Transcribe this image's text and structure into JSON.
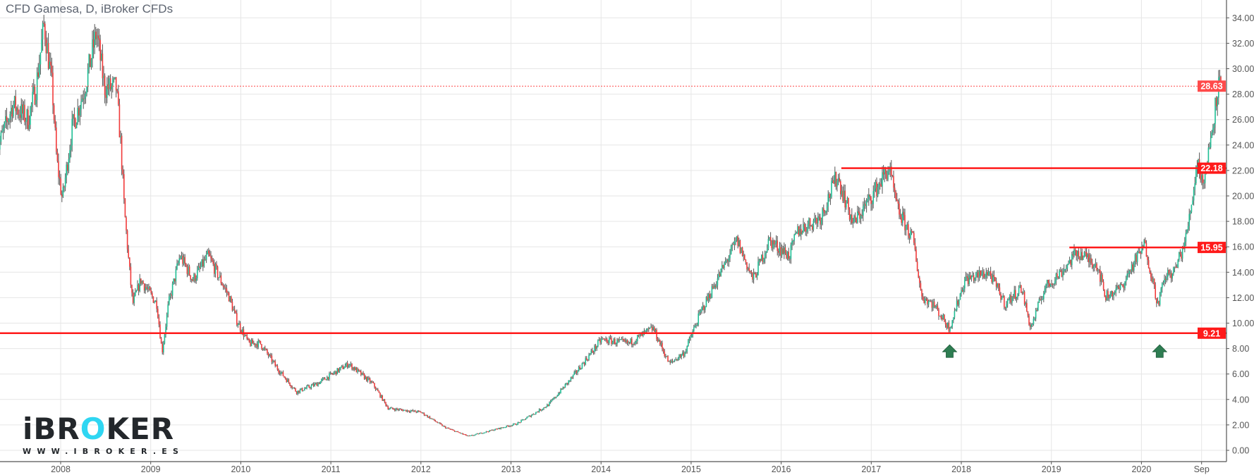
{
  "header": {
    "title": "CFD Gamesa, D, iBroker CFDs"
  },
  "logo": {
    "brand": "iBROKER",
    "url": "WWW.IBROKER.ES",
    "accent_color": "#2fd6f2"
  },
  "colors": {
    "up": "#1fbf95",
    "down": "#f23b3b",
    "wick": "#555555",
    "level_line": "#ff1a1a",
    "last_price": "#ff4a4a",
    "arrow": "#2e7d52",
    "grid": "#e6e6e6"
  },
  "chart_data": {
    "type": "candlestick",
    "title": "CFD Gamesa, D, iBroker CFDs",
    "interval": "D",
    "ylim": [
      -1,
      35
    ],
    "y_ticks": [
      "0.00",
      "2.00",
      "4.00",
      "6.00",
      "8.00",
      "10.00",
      "12.00",
      "14.00",
      "16.00",
      "18.00",
      "20.00",
      "22.00",
      "24.00",
      "26.00",
      "28.00",
      "30.00",
      "32.00",
      "34.00"
    ],
    "x_ticks": [
      {
        "label": "2008",
        "date": "2008-01-01"
      },
      {
        "label": "2009",
        "date": "2009-01-01"
      },
      {
        "label": "2010",
        "date": "2010-01-01"
      },
      {
        "label": "2011",
        "date": "2011-01-01"
      },
      {
        "label": "2012",
        "date": "2012-01-01"
      },
      {
        "label": "2013",
        "date": "2013-01-01"
      },
      {
        "label": "2014",
        "date": "2014-01-01"
      },
      {
        "label": "2015",
        "date": "2015-01-01"
      },
      {
        "label": "2016",
        "date": "2016-01-01"
      },
      {
        "label": "2017",
        "date": "2017-01-01"
      },
      {
        "label": "2018",
        "date": "2018-01-01"
      },
      {
        "label": "2019",
        "date": "2019-01-01"
      },
      {
        "label": "2020",
        "date": "2020-01-01"
      },
      {
        "label": "Sep",
        "date": "2020-09-01"
      }
    ],
    "grid": true,
    "approx_close": [
      [
        "2007-04-16",
        23.4
      ],
      [
        "2007-06-21",
        27.2
      ],
      [
        "2007-08-22",
        26.0
      ],
      [
        "2007-09-23",
        28.5
      ],
      [
        "2007-10-26",
        33.5
      ],
      [
        "2007-11-28",
        28.5
      ],
      [
        "2007-12-16",
        22.8
      ],
      [
        "2008-01-08",
        19.7
      ],
      [
        "2008-02-16",
        25.3
      ],
      [
        "2008-04-08",
        28.5
      ],
      [
        "2008-05-25",
        32.9
      ],
      [
        "2008-06-27",
        28.5
      ],
      [
        "2008-08-13",
        28.5
      ],
      [
        "2008-09-01",
        24.0
      ],
      [
        "2008-09-15",
        19.0
      ],
      [
        "2008-10-04",
        14.6
      ],
      [
        "2008-10-19",
        11.5
      ],
      [
        "2008-11-21",
        13.4
      ],
      [
        "2009-01-26",
        11.5
      ],
      [
        "2009-02-16",
        7.7
      ],
      [
        "2009-03-14",
        11.5
      ],
      [
        "2009-04-30",
        15.3
      ],
      [
        "2009-06-21",
        13.4
      ],
      [
        "2009-08-22",
        15.3
      ],
      [
        "2009-11-14",
        12.1
      ],
      [
        "2009-12-16",
        10.2
      ],
      [
        "2010-02-02",
        8.4
      ],
      [
        "2010-03-21",
        8.4
      ],
      [
        "2010-05-27",
        6.5
      ],
      [
        "2010-08-15",
        4.6
      ],
      [
        "2010-11-03",
        5.2
      ],
      [
        "2011-03-14",
        6.8
      ],
      [
        "2011-06-21",
        5.2
      ],
      [
        "2011-08-22",
        3.3
      ],
      [
        "2012-01-01",
        3.0
      ],
      [
        "2012-04-08",
        1.8
      ],
      [
        "2012-07-13",
        1.1
      ],
      [
        "2012-10-19",
        1.6
      ],
      [
        "2013-01-26",
        2.1
      ],
      [
        "2013-06-03",
        3.6
      ],
      [
        "2013-09-09",
        5.8
      ],
      [
        "2014-01-02",
        8.7
      ],
      [
        "2014-04-23",
        8.4
      ],
      [
        "2014-07-31",
        9.6
      ],
      [
        "2014-10-05",
        6.8
      ],
      [
        "2014-12-06",
        7.7
      ],
      [
        "2015-02-10",
        10.9
      ],
      [
        "2015-07-06",
        16.5
      ],
      [
        "2015-09-09",
        13.4
      ],
      [
        "2015-11-14",
        16.5
      ],
      [
        "2016-02-03",
        15.3
      ],
      [
        "2016-03-07",
        17.2
      ],
      [
        "2016-06-10",
        18.4
      ],
      [
        "2016-08-15",
        21.6
      ],
      [
        "2016-10-19",
        17.8
      ],
      [
        "2016-12-24",
        19.7
      ],
      [
        "2017-03-14",
        22.2
      ],
      [
        "2017-04-16",
        19.0
      ],
      [
        "2017-06-21",
        16.5
      ],
      [
        "2017-07-24",
        12.1
      ],
      [
        "2017-09-09",
        11.5
      ],
      [
        "2017-11-14",
        9.6
      ],
      [
        "2018-01-15",
        13.4
      ],
      [
        "2018-04-23",
        14.0
      ],
      [
        "2018-06-28",
        11.5
      ],
      [
        "2018-09-02",
        12.8
      ],
      [
        "2018-10-09",
        9.6
      ],
      [
        "2018-12-06",
        12.8
      ],
      [
        "2019-02-10",
        14.0
      ],
      [
        "2019-04-16",
        15.6
      ],
      [
        "2019-07-06",
        14.6
      ],
      [
        "2019-08-08",
        12.1
      ],
      [
        "2019-10-12",
        12.8
      ],
      [
        "2019-11-28",
        14.6
      ],
      [
        "2020-01-15",
        16.2
      ],
      [
        "2020-03-07",
        11.5
      ],
      [
        "2020-04-08",
        13.7
      ],
      [
        "2020-05-12",
        14.0
      ],
      [
        "2020-06-28",
        16.5
      ],
      [
        "2020-07-24",
        19.7
      ],
      [
        "2020-08-15",
        22.8
      ],
      [
        "2020-09-09",
        20.9
      ],
      [
        "2020-10-19",
        26.0
      ],
      [
        "2020-11-03",
        28.5
      ],
      [
        "2020-11-20",
        28.63
      ]
    ],
    "last_price": {
      "value": 28.63,
      "label": "28.63",
      "style": "dotted"
    },
    "levels": [
      {
        "value": 22.18,
        "label": "22.18",
        "from": "2016-09-01"
      },
      {
        "value": 15.95,
        "label": "15.95",
        "from": "2019-03-15"
      },
      {
        "value": 9.21,
        "label": "9.21",
        "from": "2007-01-01"
      }
    ],
    "annotations": [
      {
        "type": "up-arrow",
        "date": "2017-11-15",
        "value": 8.3
      },
      {
        "type": "up-arrow",
        "date": "2020-03-15",
        "value": 8.3
      }
    ]
  }
}
